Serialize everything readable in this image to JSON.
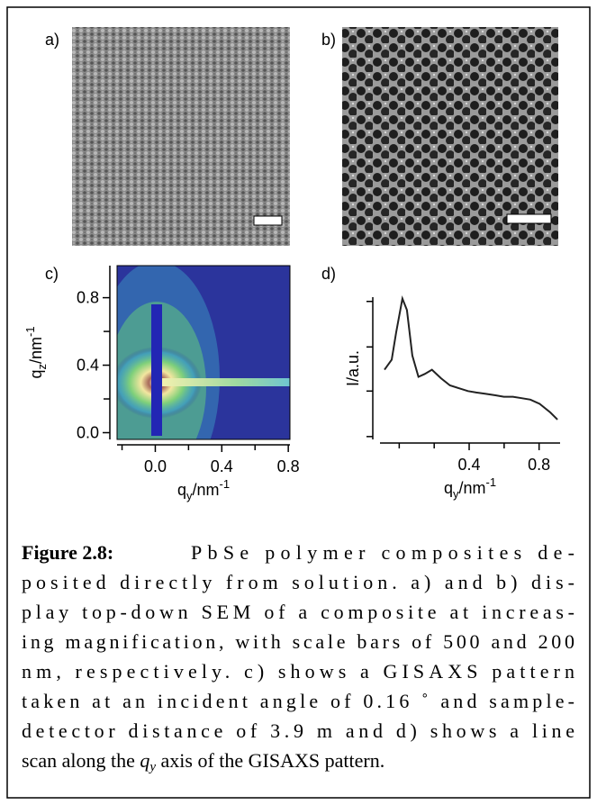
{
  "figure": {
    "panel_labels": [
      "a)",
      "b)",
      "c)",
      "d)"
    ]
  },
  "chart_data": [
    {
      "type": "image",
      "xlabel": [
        "q",
        "y",
        "/nm",
        "-1"
      ],
      "ylabel": [
        "q",
        "z",
        "/nm",
        "-1"
      ],
      "xlim": [
        -0.23,
        0.81
      ],
      "ylim": [
        -0.04,
        0.99
      ],
      "xticks": [
        {
          "value": 0,
          "label": "0.0"
        },
        0.4,
        0.8
      ],
      "yticks": [
        {
          "value": 0,
          "label": "0.0"
        },
        0.4,
        0.8
      ],
      "xminorticks": [
        -0.2,
        0.2,
        0.6
      ],
      "yminorticks": [
        0.2,
        0.6
      ]
    },
    {
      "type": "line",
      "xlabel": [
        "q",
        "y",
        "/nm",
        "-1"
      ],
      "ylabel": "I/a.u.",
      "x": [
        -0.084,
        -0.043,
        -0.018,
        0.018,
        0.044,
        0.075,
        0.11,
        0.146,
        0.187,
        0.239,
        0.29,
        0.34,
        0.393,
        0.44,
        0.495,
        0.55,
        0.598,
        0.65,
        0.7,
        0.75,
        0.803,
        0.864,
        0.905
      ],
      "values": [
        0.49,
        0.56,
        0.75,
        0.99,
        0.91,
        0.59,
        0.44,
        0.46,
        0.49,
        0.43,
        0.38,
        0.36,
        0.34,
        0.33,
        0.32,
        0.31,
        0.3,
        0.3,
        0.29,
        0.28,
        0.25,
        0.19,
        0.14
      ],
      "color": "#222222",
      "xlim": [
        -0.11,
        0.92
      ],
      "ylim": [
        0,
        1
      ],
      "xticks": [
        0.4,
        0.8
      ],
      "xminorticks": [
        0,
        0.2,
        0.6
      ],
      "yminorticks": [
        0.02,
        0.34,
        0.65,
        0.97
      ]
    }
  ],
  "caption": {
    "label": "Figure 2.8:",
    "lines": [
      "PbSe polymer composites de-",
      "posited directly from solution.  a) and b) dis-",
      "play top-down SEM of a composite at increas-",
      "ing magnification, with scale bars of 500 and 200",
      "nm, respectively.  c) shows a GISAXS pattern",
      "taken at an incident angle of 0.16 ˚ and sample-",
      "detector distance of 3.9 m and d) shows a line"
    ],
    "last_line": {
      "before": "scan along the ",
      "symbol": "q",
      "subscript": "y",
      "after": " axis of the GISAXS pattern."
    }
  }
}
